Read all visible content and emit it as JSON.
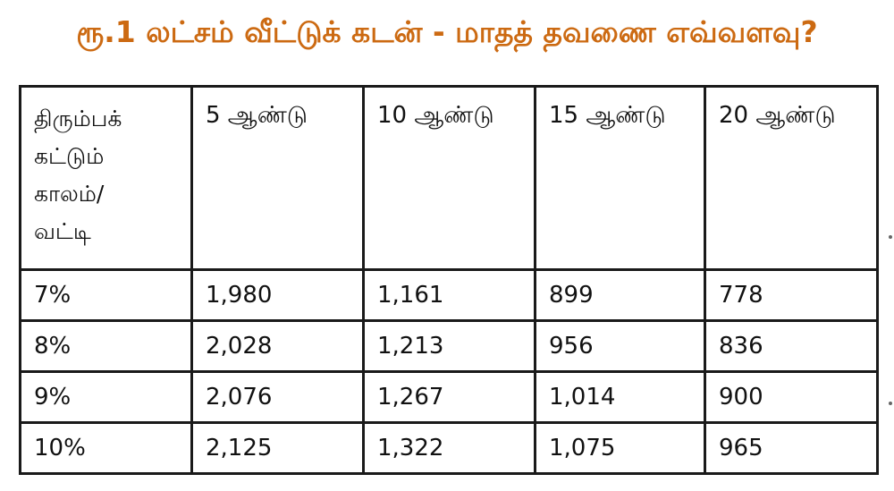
{
  "title": "ரூ.1 லட்சம் வீட்டுக் கடன் - மாதத் தவணை எவ்வளவு?",
  "colors": {
    "title": "#cc6a12",
    "border": "#1a1a1a",
    "text": "#111111"
  },
  "table": {
    "corner_header": [
      "திரும்பக்",
      "கட்டும்",
      "காலம்/",
      "வட்டி"
    ],
    "column_headers": [
      "5 ஆண்டு",
      "10 ஆண்டு",
      "15 ஆண்டு",
      "20 ஆண்டு"
    ],
    "rows": [
      {
        "rate": "7%",
        "values": [
          "1,980",
          "1,161",
          "899",
          "778"
        ]
      },
      {
        "rate": "8%",
        "values": [
          "2,028",
          "1,213",
          "956",
          "836"
        ]
      },
      {
        "rate": "9%",
        "values": [
          "2,076",
          "1,267",
          "1,014",
          "900"
        ]
      },
      {
        "rate": "10%",
        "values": [
          "2,125",
          "1,322",
          "1,075",
          "965"
        ]
      }
    ]
  }
}
